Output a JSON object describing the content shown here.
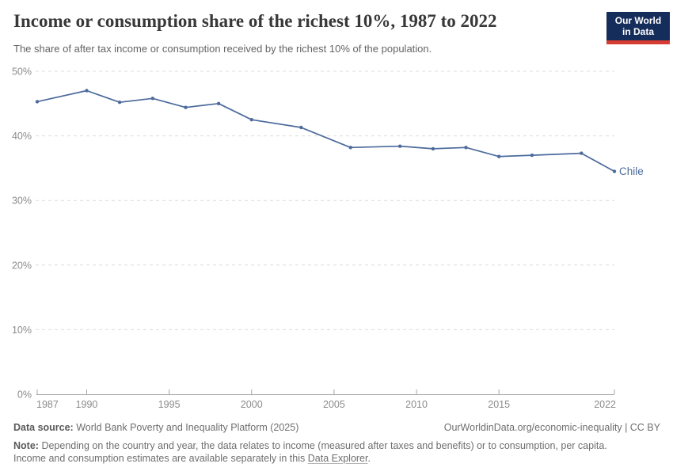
{
  "header": {
    "title": "Income or consumption share of the richest 10%, 1987 to 2022",
    "subtitle": "The share of after tax income or consumption received by the richest 10% of the population.",
    "logo": {
      "line1": "Our World",
      "line2": "in Data"
    }
  },
  "chart_data": {
    "type": "line",
    "title": "Income or consumption share of the richest 10%, 1987 to 2022",
    "xlabel": "",
    "ylabel": "",
    "xlim": [
      1987,
      2022
    ],
    "ylim": [
      0,
      50
    ],
    "grid": "horizontal-dashed",
    "legend_position": "end-of-line-label",
    "x_ticks": [
      {
        "value": 1987,
        "label": "1987"
      },
      {
        "value": 1990,
        "label": "1990"
      },
      {
        "value": 1995,
        "label": "1995"
      },
      {
        "value": 2000,
        "label": "2000"
      },
      {
        "value": 2005,
        "label": "2005"
      },
      {
        "value": 2010,
        "label": "2010"
      },
      {
        "value": 2015,
        "label": "2015"
      },
      {
        "value": 2022,
        "label": "2022"
      }
    ],
    "y_ticks": [
      {
        "value": 0,
        "label": "0%"
      },
      {
        "value": 10,
        "label": "10%"
      },
      {
        "value": 20,
        "label": "20%"
      },
      {
        "value": 30,
        "label": "30%"
      },
      {
        "value": 40,
        "label": "40%"
      },
      {
        "value": 50,
        "label": "50%"
      }
    ],
    "series": [
      {
        "name": "Chile",
        "color": "#4C6A9C",
        "x": [
          1987,
          1990,
          1992,
          1994,
          1996,
          1998,
          2000,
          2003,
          2006,
          2009,
          2011,
          2013,
          2015,
          2017,
          2020,
          2022
        ],
        "values": [
          45.3,
          47.0,
          45.2,
          45.8,
          44.4,
          45.0,
          42.5,
          41.3,
          38.2,
          38.4,
          38.0,
          38.2,
          36.8,
          37.0,
          37.3,
          34.5
        ]
      }
    ]
  },
  "footer": {
    "datasource_label": "Data source:",
    "datasource": "World Bank Poverty and Inequality Platform (2025)",
    "attribution": "OurWorldinData.org/economic-inequality | CC BY",
    "note_label": "Note:",
    "note_sentence1": "Depending on the country and year, the data relates to income (measured after taxes and benefits) or to consumption, per capita.",
    "note_sentence2": "Income and consumption estimates are available separately in this",
    "note_link": "Data Explorer",
    "note_period": "."
  },
  "colors": {
    "series": "#4C6A9C",
    "grid": "#dcdcdc",
    "axis": "#a5a5a5",
    "tick_text": "#8b8b8b",
    "logo_bg": "#142D5A",
    "logo_bar": "#D73C32"
  }
}
